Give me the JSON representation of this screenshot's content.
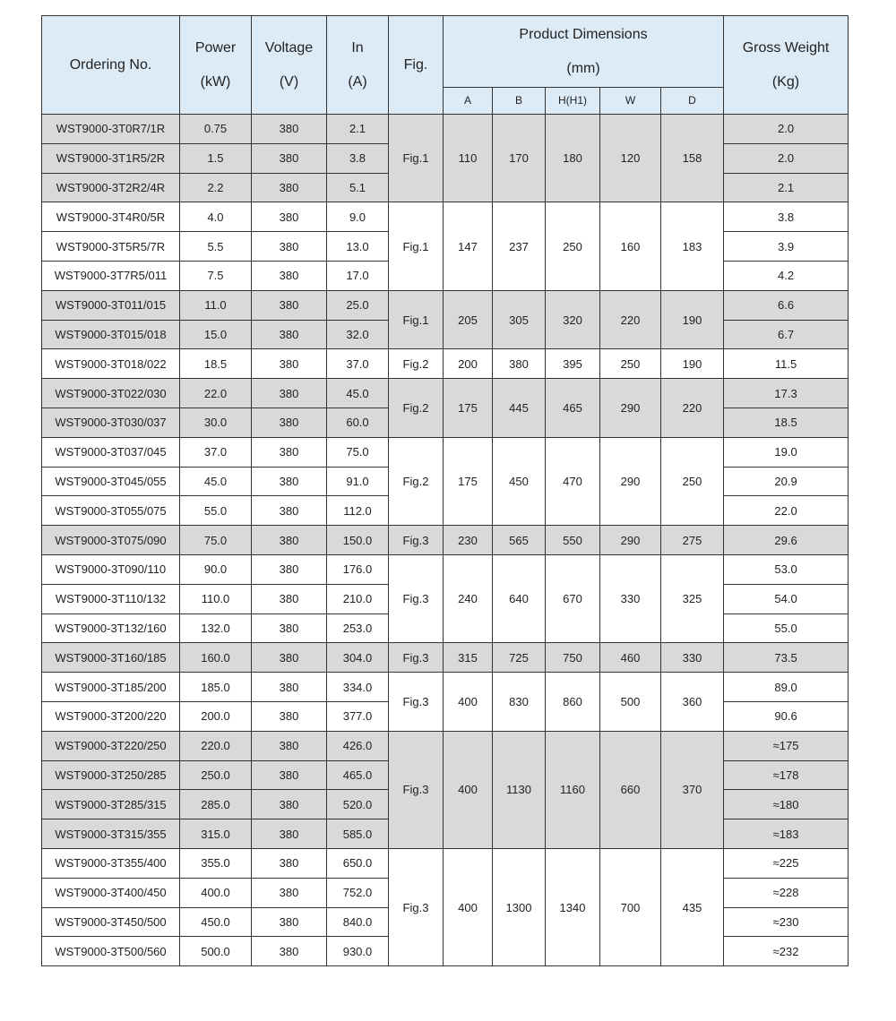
{
  "header": {
    "ordering": "Ordering No.",
    "power": [
      "Power",
      "(kW)"
    ],
    "voltage": [
      "Voltage",
      "(V)"
    ],
    "current": [
      "In",
      "(A)"
    ],
    "fig": "Fig.",
    "dims": [
      "Product Dimensions",
      "(mm)"
    ],
    "dim_cols": [
      "A",
      "B",
      "H(H1)",
      "W",
      "D"
    ],
    "weight": [
      "Gross Weight",
      "(Kg)"
    ]
  },
  "colors": {
    "header_bg": "#DDEBF7",
    "shaded_row": "#D9D9D9",
    "border": "#333333"
  },
  "groups": [
    {
      "shaded": true,
      "fig": "Fig.1",
      "dims": [
        "110",
        "170",
        "180",
        "120",
        "158"
      ],
      "rows": [
        [
          "WST9000-3T0R7/1R",
          "0.75",
          "380",
          "2.1",
          "2.0"
        ],
        [
          "WST9000-3T1R5/2R",
          "1.5",
          "380",
          "3.8",
          "2.0"
        ],
        [
          "WST9000-3T2R2/4R",
          "2.2",
          "380",
          "5.1",
          "2.1"
        ]
      ]
    },
    {
      "shaded": false,
      "fig": "Fig.1",
      "dims": [
        "147",
        "237",
        "250",
        "160",
        "183"
      ],
      "rows": [
        [
          "WST9000-3T4R0/5R",
          "4.0",
          "380",
          "9.0",
          "3.8"
        ],
        [
          "WST9000-3T5R5/7R",
          "5.5",
          "380",
          "13.0",
          "3.9"
        ],
        [
          "WST9000-3T7R5/011",
          "7.5",
          "380",
          "17.0",
          "4.2"
        ]
      ]
    },
    {
      "shaded": true,
      "fig": "Fig.1",
      "dims": [
        "205",
        "305",
        "320",
        "220",
        "190"
      ],
      "rows": [
        [
          "WST9000-3T011/015",
          "11.0",
          "380",
          "25.0",
          "6.6"
        ],
        [
          "WST9000-3T015/018",
          "15.0",
          "380",
          "32.0",
          "6.7"
        ]
      ]
    },
    {
      "shaded": false,
      "fig": "Fig.2",
      "dims": [
        "200",
        "380",
        "395",
        "250",
        "190"
      ],
      "rows": [
        [
          "WST9000-3T018/022",
          "18.5",
          "380",
          "37.0",
          "11.5"
        ]
      ]
    },
    {
      "shaded": true,
      "fig": "Fig.2",
      "dims": [
        "175",
        "445",
        "465",
        "290",
        "220"
      ],
      "rows": [
        [
          "WST9000-3T022/030",
          "22.0",
          "380",
          "45.0",
          "17.3"
        ],
        [
          "WST9000-3T030/037",
          "30.0",
          "380",
          "60.0",
          "18.5"
        ]
      ]
    },
    {
      "shaded": false,
      "fig": "Fig.2",
      "dims": [
        "175",
        "450",
        "470",
        "290",
        "250"
      ],
      "rows": [
        [
          "WST9000-3T037/045",
          "37.0",
          "380",
          "75.0",
          "19.0"
        ],
        [
          "WST9000-3T045/055",
          "45.0",
          "380",
          "91.0",
          "20.9"
        ],
        [
          "WST9000-3T055/075",
          "55.0",
          "380",
          "112.0",
          "22.0"
        ]
      ]
    },
    {
      "shaded": true,
      "fig": "Fig.3",
      "dims": [
        "230",
        "565",
        "550",
        "290",
        "275"
      ],
      "rows": [
        [
          "WST9000-3T075/090",
          "75.0",
          "380",
          "150.0",
          "29.6"
        ]
      ]
    },
    {
      "shaded": false,
      "fig": "Fig.3",
      "dims": [
        "240",
        "640",
        "670",
        "330",
        "325"
      ],
      "rows": [
        [
          "WST9000-3T090/110",
          "90.0",
          "380",
          "176.0",
          "53.0"
        ],
        [
          "WST9000-3T110/132",
          "110.0",
          "380",
          "210.0",
          "54.0"
        ],
        [
          "WST9000-3T132/160",
          "132.0",
          "380",
          "253.0",
          "55.0"
        ]
      ]
    },
    {
      "shaded": true,
      "fig": "Fig.3",
      "dims": [
        "315",
        "725",
        "750",
        "460",
        "330"
      ],
      "rows": [
        [
          "WST9000-3T160/185",
          "160.0",
          "380",
          "304.0",
          "73.5"
        ]
      ]
    },
    {
      "shaded": false,
      "fig": "Fig.3",
      "dims": [
        "400",
        "830",
        "860",
        "500",
        "360"
      ],
      "rows": [
        [
          "WST9000-3T185/200",
          "185.0",
          "380",
          "334.0",
          "89.0"
        ],
        [
          "WST9000-3T200/220",
          "200.0",
          "380",
          "377.0",
          "90.6"
        ]
      ]
    },
    {
      "shaded": true,
      "fig": "Fig.3",
      "dims": [
        "400",
        "1130",
        "1160",
        "660",
        "370"
      ],
      "rows": [
        [
          "WST9000-3T220/250",
          "220.0",
          "380",
          "426.0",
          "≈175"
        ],
        [
          "WST9000-3T250/285",
          "250.0",
          "380",
          "465.0",
          "≈178"
        ],
        [
          "WST9000-3T285/315",
          "285.0",
          "380",
          "520.0",
          "≈180"
        ],
        [
          "WST9000-3T315/355",
          "315.0",
          "380",
          "585.0",
          "≈183"
        ]
      ]
    },
    {
      "shaded": false,
      "fig": "Fig.3",
      "dims": [
        "400",
        "1300",
        "1340",
        "700",
        "435"
      ],
      "rows": [
        [
          "WST9000-3T355/400",
          "355.0",
          "380",
          "650.0",
          "≈225"
        ],
        [
          "WST9000-3T400/450",
          "400.0",
          "380",
          "752.0",
          "≈228"
        ],
        [
          "WST9000-3T450/500",
          "450.0",
          "380",
          "840.0",
          "≈230"
        ],
        [
          "WST9000-3T500/560",
          "500.0",
          "380",
          "930.0",
          "≈232"
        ]
      ]
    }
  ]
}
